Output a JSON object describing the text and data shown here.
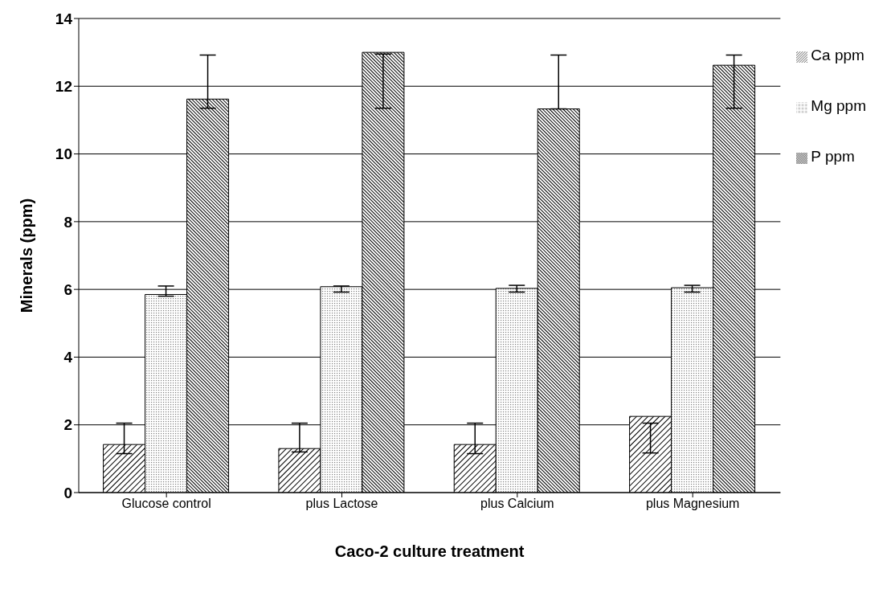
{
  "chart_data": {
    "type": "bar",
    "xlabel": "Caco-2 culture treatment",
    "ylabel": "Minerals (ppm)",
    "categories": [
      "Glucose control",
      "plus Lactose",
      "plus Calcium",
      "plus Magnesium"
    ],
    "series": [
      {
        "name": "Ca ppm",
        "color": "#000000",
        "values": [
          1.42,
          1.3,
          1.42,
          2.25
        ],
        "errors": [
          [
            1.15,
            2.05
          ],
          [
            1.2,
            2.05
          ],
          [
            1.15,
            2.05
          ],
          [
            1.17,
            2.05
          ]
        ]
      },
      {
        "name": "Mg ppm",
        "color": "#000000",
        "values": [
          5.85,
          6.08,
          6.03,
          6.05
        ],
        "errors": [
          [
            5.8,
            6.1
          ],
          [
            5.92,
            6.1
          ],
          [
            5.92,
            6.12
          ],
          [
            5.92,
            6.12
          ]
        ]
      },
      {
        "name": "P ppm",
        "color": "#000000",
        "values": [
          11.62,
          13.0,
          11.33,
          12.62
        ],
        "errors": [
          [
            11.35,
            12.92
          ],
          [
            11.35,
            12.95
          ],
          [
            11.33,
            12.92
          ],
          [
            11.35,
            12.92
          ]
        ]
      }
    ],
    "ylim": [
      0,
      14
    ],
    "yticks": [
      0,
      2,
      4,
      6,
      8,
      10,
      12,
      14
    ],
    "grid": "y",
    "legend": "right"
  }
}
